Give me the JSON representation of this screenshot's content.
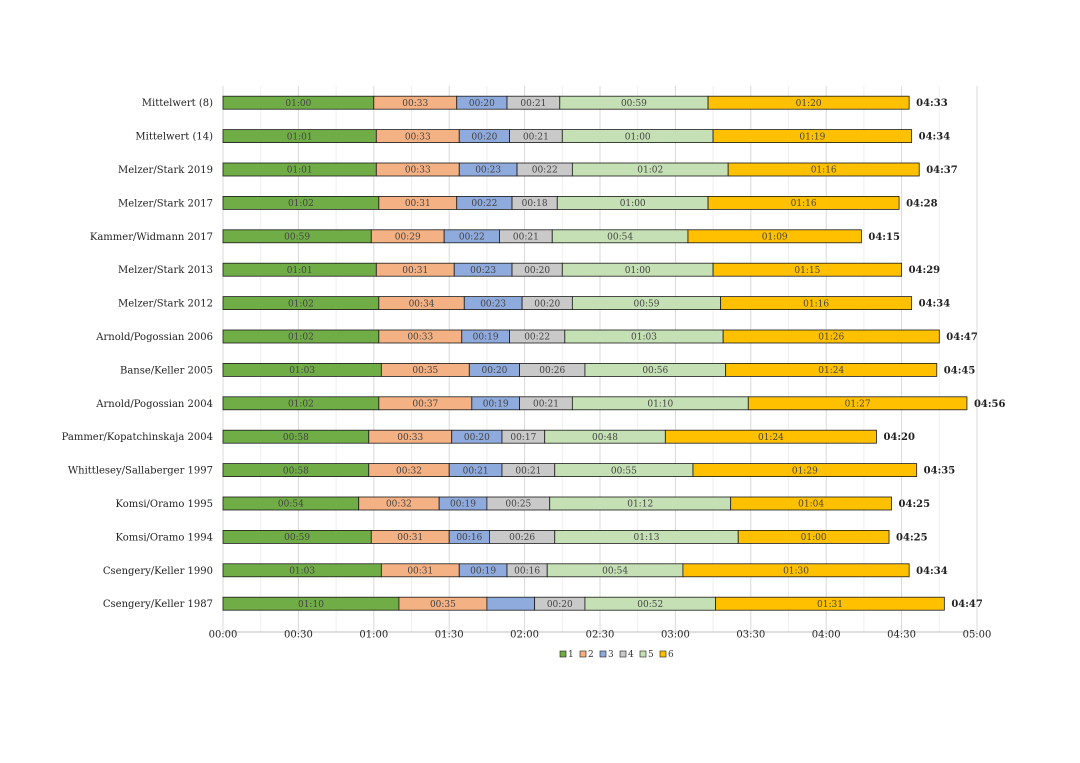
{
  "chart_data": {
    "type": "bar",
    "orientation": "horizontal",
    "stacked": true,
    "categories": [
      "Mittelwert (8)",
      "Mittelwert (14)",
      "Melzer/Stark 2019",
      "Melzer/Stark 2017",
      "Kammer/Widmann 2017",
      "Melzer/Stark 2013",
      "Melzer/Stark 2012",
      "Arnold/Pogossian 2006",
      "Banse/Keller 2005",
      "Arnold/Pogossian 2004",
      "Pammer/Kopatchinskaja 2004",
      "Whittlesey/Sallaberger 1997",
      "Komsi/Oramo 1995",
      "Komsi/Oramo 1994",
      "Csengery/Keller 1990",
      "Csengery/Keller 1987"
    ],
    "series": [
      {
        "name": "1",
        "color": "#70ad47",
        "values": [
          "01:00",
          "01:01",
          "01:01",
          "01:02",
          "00:59",
          "01:01",
          "01:02",
          "01:02",
          "01:03",
          "01:02",
          "00:58",
          "00:58",
          "00:54",
          "00:59",
          "01:03",
          "01:10"
        ]
      },
      {
        "name": "2",
        "color": "#f4b183",
        "values": [
          "00:33",
          "00:33",
          "00:33",
          "00:31",
          "00:29",
          "00:31",
          "00:34",
          "00:33",
          "00:35",
          "00:37",
          "00:33",
          "00:32",
          "00:32",
          "00:31",
          "00:31",
          "00:35"
        ]
      },
      {
        "name": "3",
        "color": "#8faadc",
        "values": [
          "00:20",
          "00:20",
          "00:23",
          "00:22",
          "00:22",
          "00:23",
          "00:23",
          "00:19",
          "00:20",
          "00:19",
          "00:20",
          "00:21",
          "00:19",
          "00:16",
          "00:19",
          "00:19"
        ]
      },
      {
        "name": "4",
        "color": "#c9c9c9",
        "values": [
          "00:21",
          "00:21",
          "00:22",
          "00:18",
          "00:21",
          "00:20",
          "00:20",
          "00:22",
          "00:26",
          "00:21",
          "00:17",
          "00:21",
          "00:25",
          "00:26",
          "00:16",
          "00:20"
        ]
      },
      {
        "name": "5",
        "color": "#c5e0b4",
        "values": [
          "00:59",
          "01:00",
          "01:02",
          "01:00",
          "00:54",
          "01:00",
          "00:59",
          "01:03",
          "00:56",
          "01:10",
          "00:48",
          "00:55",
          "01:12",
          "01:13",
          "00:54",
          "00:52"
        ]
      },
      {
        "name": "6",
        "color": "#ffc000",
        "values": [
          "01:20",
          "01:19",
          "01:16",
          "01:16",
          "01:09",
          "01:15",
          "01:16",
          "01:26",
          "01:24",
          "01:27",
          "01:24",
          "01:29",
          "01:04",
          "01:00",
          "01:30",
          "01:31"
        ]
      }
    ],
    "hidden_segment_labels": [
      {
        "category": "Csengery/Keller 1987",
        "series": "3"
      }
    ],
    "totals": [
      "04:33",
      "04:34",
      "04:37",
      "04:28",
      "04:15",
      "04:29",
      "04:34",
      "04:47",
      "04:45",
      "04:56",
      "04:20",
      "04:35",
      "04:25",
      "04:25",
      "04:34",
      "04:47"
    ],
    "x_ticks": [
      "00:00",
      "00:30",
      "01:00",
      "01:30",
      "02:00",
      "02:30",
      "03:00",
      "03:30",
      "04:00",
      "04:30",
      "05:00"
    ],
    "xlim": [
      "00:00",
      "05:00"
    ],
    "grid": true,
    "legend_position": "bottom",
    "title": "",
    "xlabel": "",
    "ylabel": ""
  }
}
